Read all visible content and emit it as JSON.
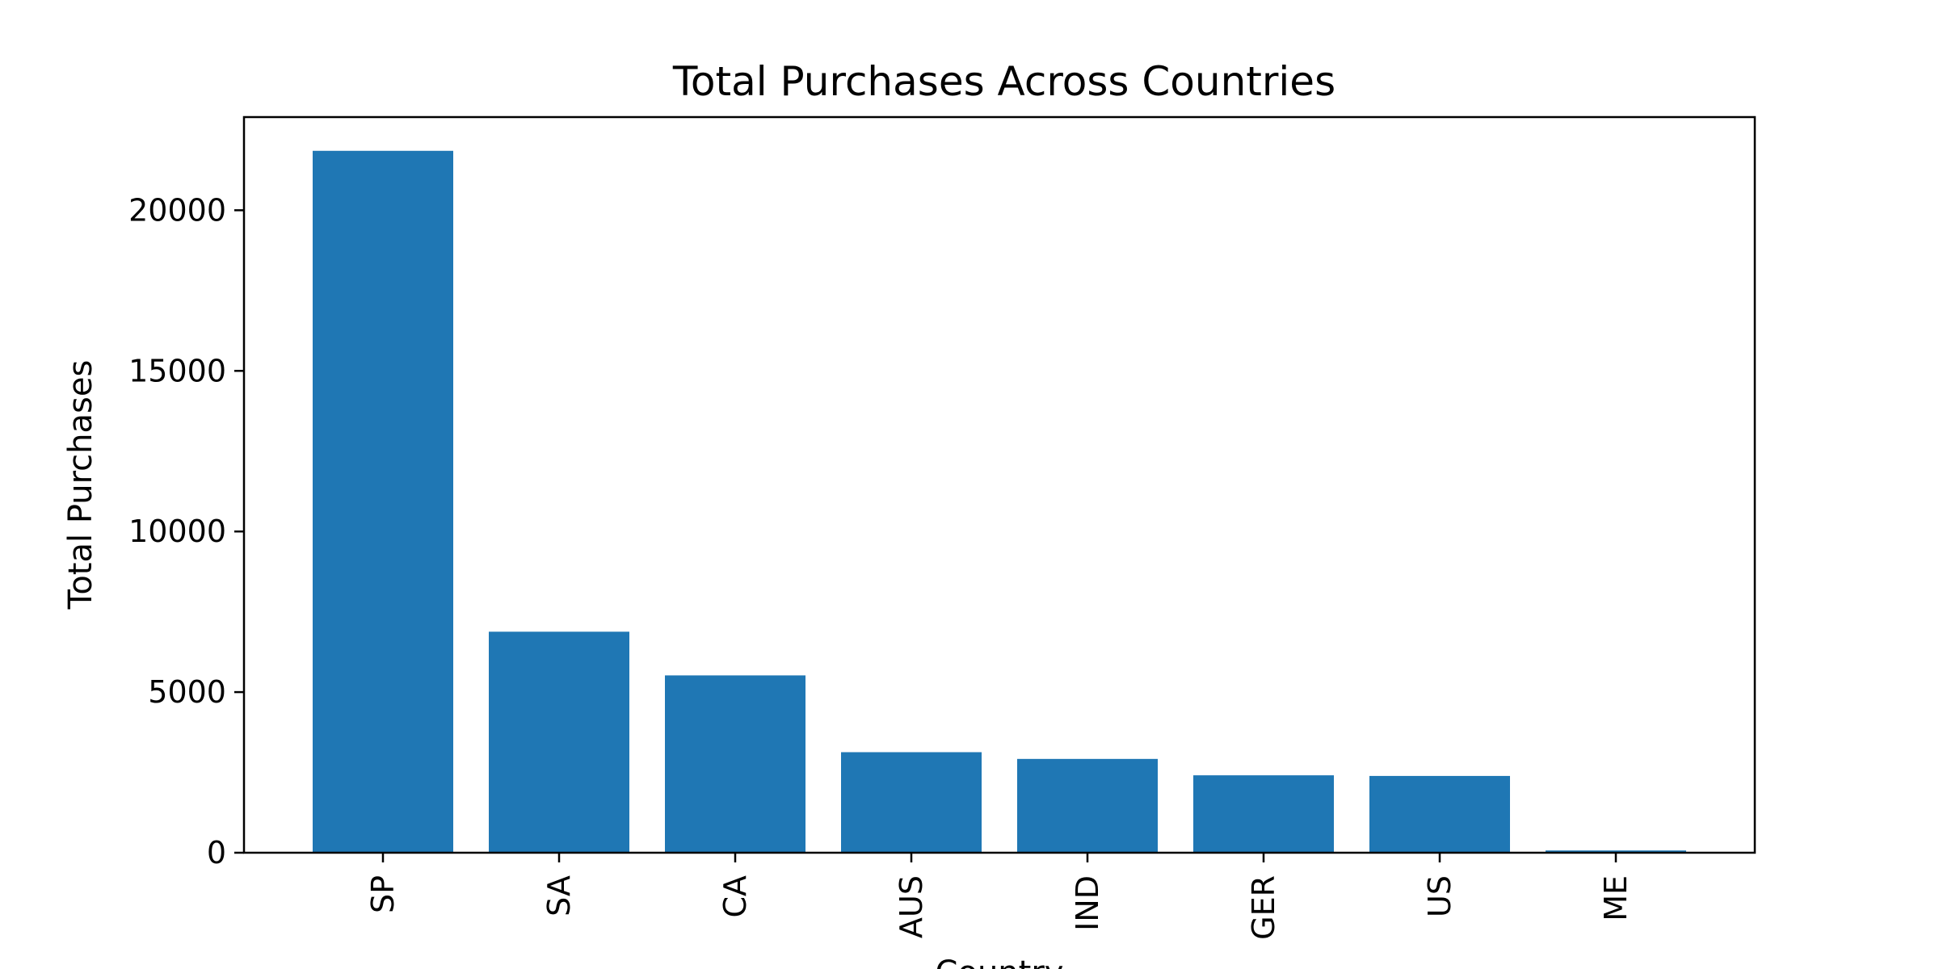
{
  "chart_data": {
    "type": "bar",
    "title": "Total Purchases Across Countries",
    "xlabel": "Country",
    "ylabel": "Total Purchases",
    "categories": [
      "SP",
      "SA",
      "CA",
      "AUS",
      "IND",
      "GER",
      "US",
      "ME"
    ],
    "values": [
      21850,
      6880,
      5520,
      3130,
      2920,
      2410,
      2390,
      70
    ],
    "ylim": [
      0,
      22900
    ],
    "yticks": [
      0,
      5000,
      10000,
      15000,
      20000
    ],
    "bar_color": "#1f77b4",
    "grid": false,
    "legend": "none"
  }
}
